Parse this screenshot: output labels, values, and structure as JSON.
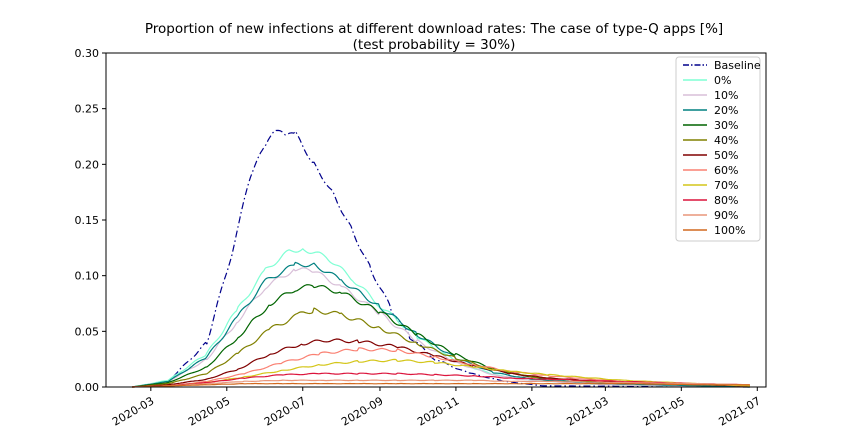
{
  "chart_data": {
    "type": "line",
    "title": "Proportion of new infections at different download rates: The case of type-Q apps [%]",
    "subtitle": "(test probability = 30%)",
    "xlabel": "",
    "ylabel": "",
    "x_range": [
      "2020-01-25",
      "2021-07-08"
    ],
    "ylim": [
      0,
      0.3
    ],
    "y_ticks": [
      "0.00",
      "0.05",
      "0.10",
      "0.15",
      "0.20",
      "0.25",
      "0.30"
    ],
    "x_ticks": [
      {
        "date": "2020-03-01",
        "label": "2020-03"
      },
      {
        "date": "2020-05-01",
        "label": "2020-05"
      },
      {
        "date": "2020-07-01",
        "label": "2020-07"
      },
      {
        "date": "2020-09-01",
        "label": "2020-09"
      },
      {
        "date": "2020-11-01",
        "label": "2020-11"
      },
      {
        "date": "2021-01-01",
        "label": "2021-01"
      },
      {
        "date": "2021-03-01",
        "label": "2021-03"
      },
      {
        "date": "2021-05-01",
        "label": "2021-05"
      },
      {
        "date": "2021-07-01",
        "label": "2021-07"
      }
    ],
    "grid": false,
    "legend_position": "top-right",
    "series": [
      {
        "name": "Baseline",
        "color": "#00008b",
        "dash": "dashdot",
        "points": [
          [
            "2020-02-15",
            0
          ],
          [
            "2020-03-15",
            0.005
          ],
          [
            "2020-04-15",
            0.04
          ],
          [
            "2020-05-05",
            0.12
          ],
          [
            "2020-05-20",
            0.19
          ],
          [
            "2020-06-03",
            0.222
          ],
          [
            "2020-06-10",
            0.23
          ],
          [
            "2020-06-18",
            0.225
          ],
          [
            "2020-06-25",
            0.228
          ],
          [
            "2020-07-10",
            0.2
          ],
          [
            "2020-07-25",
            0.175
          ],
          [
            "2020-08-10",
            0.14
          ],
          [
            "2020-08-25",
            0.105
          ],
          [
            "2020-09-10",
            0.07
          ],
          [
            "2020-09-25",
            0.045
          ],
          [
            "2020-10-15",
            0.025
          ],
          [
            "2020-11-10",
            0.013
          ],
          [
            "2020-12-10",
            0.005
          ],
          [
            "2021-01-10",
            0.001
          ],
          [
            "2021-06-25",
            0
          ]
        ]
      },
      {
        "name": "0%",
        "color": "#7fffd4",
        "dash": "solid",
        "points": [
          [
            "2020-02-15",
            0
          ],
          [
            "2020-03-15",
            0.006
          ],
          [
            "2020-04-15",
            0.03
          ],
          [
            "2020-05-10",
            0.07
          ],
          [
            "2020-06-01",
            0.105
          ],
          [
            "2020-06-20",
            0.122
          ],
          [
            "2020-07-01",
            0.124
          ],
          [
            "2020-07-20",
            0.117
          ],
          [
            "2020-08-10",
            0.097
          ],
          [
            "2020-09-01",
            0.073
          ],
          [
            "2020-10-01",
            0.045
          ],
          [
            "2020-11-01",
            0.023
          ],
          [
            "2020-12-01",
            0.011
          ],
          [
            "2021-01-01",
            0.006
          ],
          [
            "2021-03-01",
            0.002
          ],
          [
            "2021-06-25",
            0
          ]
        ]
      },
      {
        "name": "10%",
        "color": "#d8bfd8",
        "dash": "solid",
        "points": [
          [
            "2020-02-15",
            0
          ],
          [
            "2020-03-15",
            0.005
          ],
          [
            "2020-04-15",
            0.025
          ],
          [
            "2020-05-10",
            0.06
          ],
          [
            "2020-06-01",
            0.09
          ],
          [
            "2020-06-25",
            0.106
          ],
          [
            "2020-07-10",
            0.104
          ],
          [
            "2020-08-01",
            0.09
          ],
          [
            "2020-09-01",
            0.066
          ],
          [
            "2020-10-01",
            0.041
          ],
          [
            "2020-11-01",
            0.022
          ],
          [
            "2020-12-01",
            0.011
          ],
          [
            "2021-01-01",
            0.006
          ],
          [
            "2021-03-01",
            0.002
          ],
          [
            "2021-06-25",
            0
          ]
        ]
      },
      {
        "name": "20%",
        "color": "#008080",
        "dash": "solid",
        "points": [
          [
            "2020-02-15",
            0
          ],
          [
            "2020-03-15",
            0.005
          ],
          [
            "2020-04-15",
            0.027
          ],
          [
            "2020-05-10",
            0.063
          ],
          [
            "2020-06-01",
            0.095
          ],
          [
            "2020-06-25",
            0.11
          ],
          [
            "2020-07-10",
            0.11
          ],
          [
            "2020-08-01",
            0.096
          ],
          [
            "2020-09-01",
            0.072
          ],
          [
            "2020-10-01",
            0.047
          ],
          [
            "2020-11-01",
            0.026
          ],
          [
            "2020-12-01",
            0.013
          ],
          [
            "2021-01-01",
            0.007
          ],
          [
            "2021-03-01",
            0.003
          ],
          [
            "2021-06-25",
            0
          ]
        ]
      },
      {
        "name": "30%",
        "color": "#006400",
        "dash": "solid",
        "points": [
          [
            "2020-02-15",
            0
          ],
          [
            "2020-03-15",
            0.004
          ],
          [
            "2020-04-15",
            0.018
          ],
          [
            "2020-05-10",
            0.045
          ],
          [
            "2020-06-05",
            0.075
          ],
          [
            "2020-06-25",
            0.088
          ],
          [
            "2020-07-10",
            0.091
          ],
          [
            "2020-08-01",
            0.085
          ],
          [
            "2020-09-01",
            0.067
          ],
          [
            "2020-10-01",
            0.047
          ],
          [
            "2020-11-01",
            0.029
          ],
          [
            "2020-12-01",
            0.016
          ],
          [
            "2021-01-01",
            0.009
          ],
          [
            "2021-03-01",
            0.004
          ],
          [
            "2021-06-25",
            0.001
          ]
        ]
      },
      {
        "name": "40%",
        "color": "#808000",
        "dash": "solid",
        "points": [
          [
            "2020-02-15",
            0
          ],
          [
            "2020-03-15",
            0.003
          ],
          [
            "2020-04-15",
            0.012
          ],
          [
            "2020-05-10",
            0.03
          ],
          [
            "2020-06-05",
            0.052
          ],
          [
            "2020-06-28",
            0.065
          ],
          [
            "2020-07-10",
            0.069
          ],
          [
            "2020-08-01",
            0.065
          ],
          [
            "2020-09-01",
            0.053
          ],
          [
            "2020-10-01",
            0.039
          ],
          [
            "2020-11-01",
            0.026
          ],
          [
            "2020-12-01",
            0.016
          ],
          [
            "2021-01-01",
            0.009
          ],
          [
            "2021-03-01",
            0.004
          ],
          [
            "2021-06-25",
            0.001
          ]
        ]
      },
      {
        "name": "50%",
        "color": "#800000",
        "dash": "solid",
        "points": [
          [
            "2020-02-15",
            0
          ],
          [
            "2020-03-15",
            0.002
          ],
          [
            "2020-04-15",
            0.007
          ],
          [
            "2020-05-10",
            0.016
          ],
          [
            "2020-06-05",
            0.03
          ],
          [
            "2020-07-01",
            0.039
          ],
          [
            "2020-07-20",
            0.042
          ],
          [
            "2020-08-15",
            0.041
          ],
          [
            "2020-09-15",
            0.036
          ],
          [
            "2020-10-15",
            0.028
          ],
          [
            "2020-11-15",
            0.019
          ],
          [
            "2020-12-15",
            0.012
          ],
          [
            "2021-01-15",
            0.008
          ],
          [
            "2021-03-15",
            0.004
          ],
          [
            "2021-06-25",
            0.001
          ]
        ]
      },
      {
        "name": "60%",
        "color": "#fa8072",
        "dash": "solid",
        "points": [
          [
            "2020-02-15",
            0
          ],
          [
            "2020-03-15",
            0.001
          ],
          [
            "2020-04-15",
            0.005
          ],
          [
            "2020-05-15",
            0.012
          ],
          [
            "2020-06-15",
            0.022
          ],
          [
            "2020-07-15",
            0.03
          ],
          [
            "2020-08-15",
            0.034
          ],
          [
            "2020-09-15",
            0.033
          ],
          [
            "2020-10-15",
            0.027
          ],
          [
            "2020-11-15",
            0.02
          ],
          [
            "2020-12-15",
            0.014
          ],
          [
            "2021-01-15",
            0.01
          ],
          [
            "2021-03-15",
            0.005
          ],
          [
            "2021-06-25",
            0.001
          ]
        ]
      },
      {
        "name": "70%",
        "color": "#d4c61a",
        "dash": "solid",
        "points": [
          [
            "2020-02-15",
            0
          ],
          [
            "2020-03-15",
            0.001
          ],
          [
            "2020-04-15",
            0.004
          ],
          [
            "2020-05-15",
            0.009
          ],
          [
            "2020-06-15",
            0.015
          ],
          [
            "2020-07-15",
            0.02
          ],
          [
            "2020-08-15",
            0.023
          ],
          [
            "2020-09-15",
            0.024
          ],
          [
            "2020-10-15",
            0.022
          ],
          [
            "2020-11-15",
            0.018
          ],
          [
            "2020-12-15",
            0.014
          ],
          [
            "2021-01-15",
            0.011
          ],
          [
            "2021-03-15",
            0.006
          ],
          [
            "2021-05-15",
            0.003
          ],
          [
            "2021-06-25",
            0.001
          ]
        ]
      },
      {
        "name": "80%",
        "color": "#dc143c",
        "dash": "solid",
        "points": [
          [
            "2020-02-15",
            0
          ],
          [
            "2020-03-15",
            0.001
          ],
          [
            "2020-04-15",
            0.004
          ],
          [
            "2020-05-15",
            0.008
          ],
          [
            "2020-06-15",
            0.011
          ],
          [
            "2020-07-15",
            0.012
          ],
          [
            "2020-08-15",
            0.012
          ],
          [
            "2020-09-15",
            0.012
          ],
          [
            "2020-10-15",
            0.011
          ],
          [
            "2020-11-15",
            0.01
          ],
          [
            "2020-12-15",
            0.008
          ],
          [
            "2021-01-15",
            0.007
          ],
          [
            "2021-03-15",
            0.005
          ],
          [
            "2021-05-15",
            0.003
          ],
          [
            "2021-06-25",
            0.002
          ]
        ]
      },
      {
        "name": "90%",
        "color": "#e9967a",
        "dash": "solid",
        "points": [
          [
            "2020-02-15",
            0
          ],
          [
            "2020-03-15",
            0.001
          ],
          [
            "2020-04-15",
            0.003
          ],
          [
            "2020-05-15",
            0.005
          ],
          [
            "2020-06-15",
            0.006
          ],
          [
            "2020-07-15",
            0.006
          ],
          [
            "2020-08-15",
            0.006
          ],
          [
            "2020-09-15",
            0.006
          ],
          [
            "2020-10-15",
            0.006
          ],
          [
            "2020-11-15",
            0.006
          ],
          [
            "2020-12-15",
            0.005
          ],
          [
            "2021-01-15",
            0.005
          ],
          [
            "2021-03-15",
            0.004
          ],
          [
            "2021-05-15",
            0.003
          ],
          [
            "2021-06-25",
            0.002
          ]
        ]
      },
      {
        "name": "100%",
        "color": "#d2691e",
        "dash": "solid",
        "points": [
          [
            "2020-02-15",
            0
          ],
          [
            "2020-03-15",
            0.001
          ],
          [
            "2020-04-15",
            0.002
          ],
          [
            "2020-05-15",
            0.003
          ],
          [
            "2020-06-15",
            0.003
          ],
          [
            "2020-07-15",
            0.003
          ],
          [
            "2020-08-15",
            0.003
          ],
          [
            "2020-09-15",
            0.003
          ],
          [
            "2020-10-15",
            0.003
          ],
          [
            "2020-11-15",
            0.003
          ],
          [
            "2020-12-15",
            0.003
          ],
          [
            "2021-01-15",
            0.003
          ],
          [
            "2021-03-15",
            0.003
          ],
          [
            "2021-05-15",
            0.002
          ],
          [
            "2021-06-25",
            0.002
          ]
        ]
      }
    ]
  }
}
